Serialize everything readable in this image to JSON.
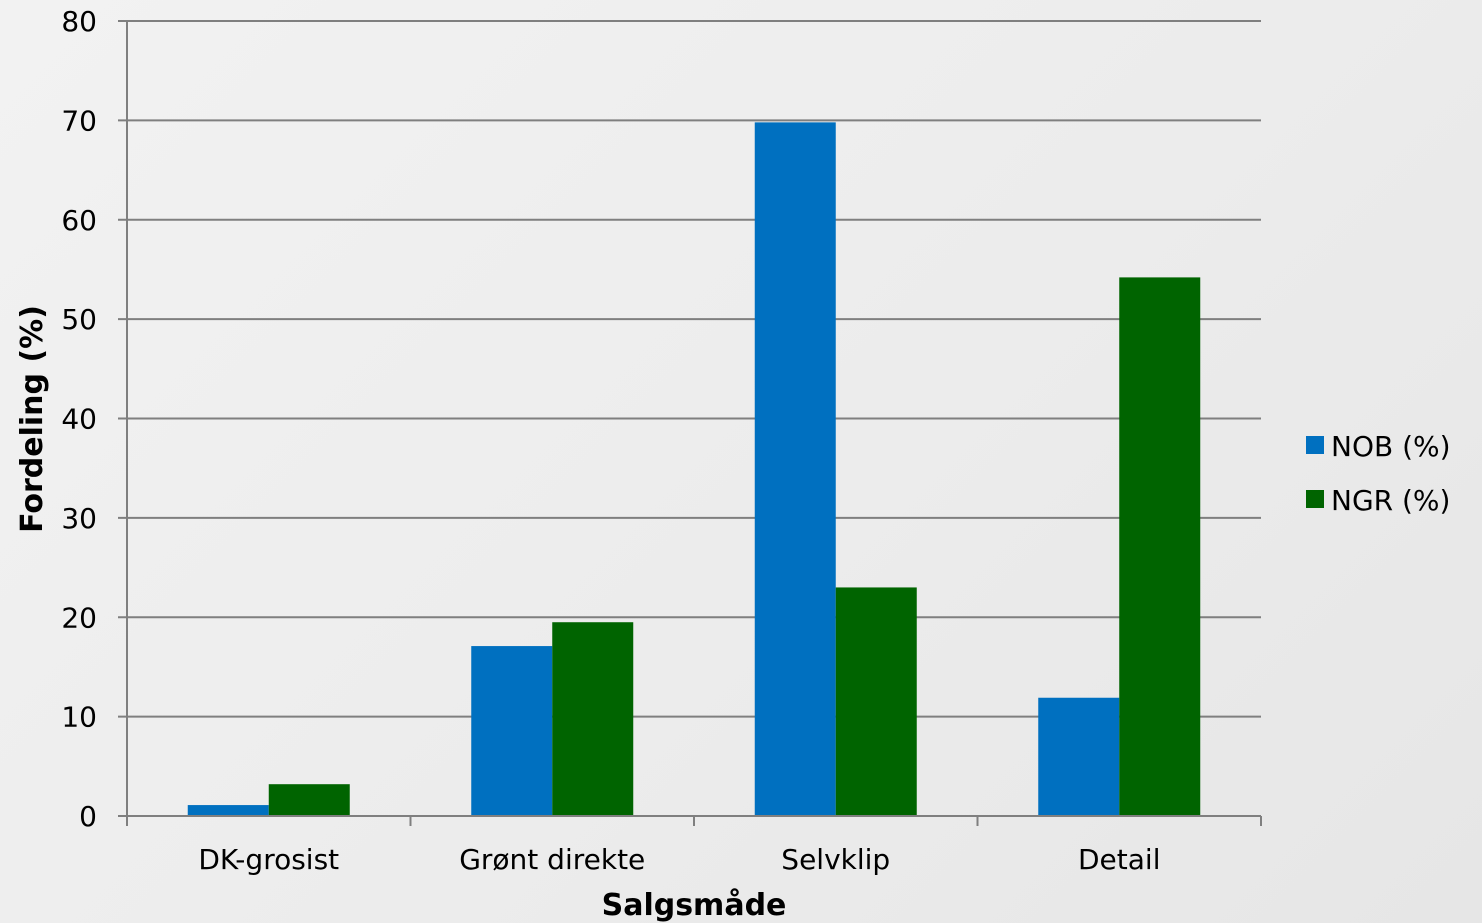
{
  "chart_data": {
    "type": "bar",
    "categories": [
      "DK-grosist",
      "Grønt direkte",
      "Selvklip",
      "Detail"
    ],
    "series": [
      {
        "name": "NOB (%)",
        "values": [
          1.1,
          17.1,
          69.8,
          11.9
        ],
        "color": "#0070C0"
      },
      {
        "name": "NGR (%)",
        "values": [
          3.2,
          19.5,
          23.0,
          54.2
        ],
        "color": "#006400"
      }
    ],
    "xlabel": "Salgsmåde",
    "ylabel": "Fordeling (%)",
    "ylim": [
      0,
      80
    ],
    "yticks": [
      0,
      10,
      20,
      30,
      40,
      50,
      60,
      70,
      80
    ],
    "grid": true,
    "legend_position": "right",
    "colors": {
      "gridline": "#7F7F7F",
      "axis": "#7F7F7F"
    }
  }
}
